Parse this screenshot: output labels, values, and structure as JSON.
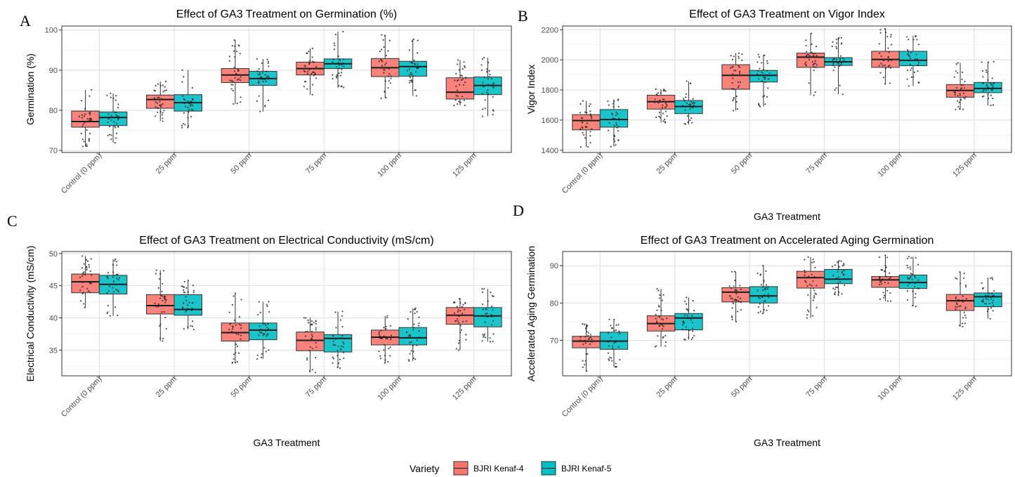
{
  "colors": {
    "BJRI Kenaf-4": "#F8766D",
    "BJRI Kenaf-5": "#00BFC4"
  },
  "legend": {
    "title": "Variety",
    "items": [
      {
        "label": "BJRI Kenaf-4",
        "color": "#F8766D"
      },
      {
        "label": "BJRI Kenaf-5",
        "color": "#00BFC4"
      }
    ]
  },
  "chart_data": [
    {
      "panel": "A",
      "type": "box",
      "title": "Effect of GA3 Treatment on Germination (%)",
      "xlabel": "",
      "ylabel": "Germination (%)",
      "ylim": [
        69.5,
        101
      ],
      "yticks": [
        70,
        80,
        90,
        100
      ],
      "categories": [
        "Control (0 ppm)",
        "25 ppm",
        "50 ppm",
        "75 ppm",
        "100 ppm",
        "125 ppm"
      ],
      "series": [
        {
          "name": "BJRI Kenaf-4",
          "boxes": [
            {
              "q1": 75.8,
              "median": 77.2,
              "q3": 79.8,
              "min": 71.0,
              "max": 85.1
            },
            {
              "q1": 80.5,
              "median": 82.7,
              "q3": 83.8,
              "min": 77.3,
              "max": 87.2
            },
            {
              "q1": 86.9,
              "median": 88.8,
              "q3": 90.4,
              "min": 81.6,
              "max": 97.5
            },
            {
              "q1": 88.8,
              "median": 90.4,
              "q3": 92.0,
              "min": 83.9,
              "max": 95.4
            },
            {
              "q1": 88.4,
              "median": 90.6,
              "q3": 92.9,
              "min": 83.0,
              "max": 98.8
            },
            {
              "q1": 82.8,
              "median": 84.5,
              "q3": 88.1,
              "min": 81.2,
              "max": 92.5
            }
          ]
        },
        {
          "name": "BJRI Kenaf-5",
          "boxes": [
            {
              "q1": 76.2,
              "median": 78.2,
              "q3": 79.6,
              "min": 71.9,
              "max": 84.2
            },
            {
              "q1": 79.8,
              "median": 81.9,
              "q3": 83.9,
              "min": 75.7,
              "max": 90.0
            },
            {
              "q1": 86.2,
              "median": 87.9,
              "q3": 89.7,
              "min": 79.7,
              "max": 92.8
            },
            {
              "q1": 90.4,
              "median": 91.6,
              "q3": 92.8,
              "min": 85.7,
              "max": 99.6
            },
            {
              "q1": 88.5,
              "median": 90.9,
              "q3": 92.2,
              "min": 83.6,
              "max": 97.7
            },
            {
              "q1": 83.9,
              "median": 86.2,
              "q3": 88.3,
              "min": 78.5,
              "max": 93.1
            }
          ]
        }
      ]
    },
    {
      "panel": "B",
      "type": "box",
      "title": "Effect of GA3 Treatment on Vigor Index",
      "xlabel": "GA3 Treatment",
      "ylabel": "Vigor Index",
      "ylim": [
        1385,
        2225
      ],
      "yticks": [
        1400,
        1600,
        1800,
        2000,
        2200
      ],
      "categories": [
        "Control (0 ppm)",
        "25 ppm",
        "50 ppm",
        "75 ppm",
        "100 ppm",
        "125 ppm"
      ],
      "series": [
        {
          "name": "BJRI Kenaf-4",
          "boxes": [
            {
              "q1": 1535,
              "median": 1597,
              "q3": 1636,
              "min": 1421,
              "max": 1727
            },
            {
              "q1": 1673,
              "median": 1722,
              "q3": 1765,
              "min": 1583,
              "max": 1805
            },
            {
              "q1": 1805,
              "median": 1897,
              "q3": 1968,
              "min": 1663,
              "max": 2045
            },
            {
              "q1": 1950,
              "median": 2018,
              "q3": 2045,
              "min": 1765,
              "max": 2175
            },
            {
              "q1": 1950,
              "median": 2003,
              "q3": 2057,
              "min": 1840,
              "max": 2206
            },
            {
              "q1": 1752,
              "median": 1797,
              "q3": 1836,
              "min": 1670,
              "max": 1980
            }
          ]
        },
        {
          "name": "BJRI Kenaf-5",
          "boxes": [
            {
              "q1": 1553,
              "median": 1604,
              "q3": 1670,
              "min": 1424,
              "max": 1738
            },
            {
              "q1": 1643,
              "median": 1690,
              "q3": 1730,
              "min": 1573,
              "max": 1858
            },
            {
              "q1": 1853,
              "median": 1897,
              "q3": 1930,
              "min": 1690,
              "max": 2036
            },
            {
              "q1": 1963,
              "median": 1987,
              "q3": 2015,
              "min": 1772,
              "max": 2147
            },
            {
              "q1": 1961,
              "median": 1997,
              "q3": 2057,
              "min": 1826,
              "max": 2160
            },
            {
              "q1": 1782,
              "median": 1810,
              "q3": 1850,
              "min": 1697,
              "max": 1988
            }
          ]
        }
      ]
    },
    {
      "panel": "C",
      "type": "box",
      "title": "Effect of GA3 Treatment on Electrical Conductivity (mS/cm)",
      "xlabel": "GA3 Treatment",
      "ylabel": "Electrical Conductivity (mS/cm)",
      "ylim": [
        31.0,
        50.3
      ],
      "yticks": [
        35,
        40,
        45,
        50
      ],
      "categories": [
        "Control (0 ppm)",
        "25 ppm",
        "50 ppm",
        "75 ppm",
        "100 ppm",
        "125 ppm"
      ],
      "series": [
        {
          "name": "BJRI Kenaf-4",
          "boxes": [
            {
              "q1": 43.9,
              "median": 45.6,
              "q3": 46.8,
              "min": 41.6,
              "max": 49.6
            },
            {
              "q1": 40.6,
              "median": 41.9,
              "q3": 43.6,
              "min": 36.4,
              "max": 47.4
            },
            {
              "q1": 36.4,
              "median": 37.7,
              "q3": 39.2,
              "min": 33.0,
              "max": 43.8
            },
            {
              "q1": 34.9,
              "median": 36.5,
              "q3": 37.8,
              "min": 31.5,
              "max": 40.0
            },
            {
              "q1": 35.8,
              "median": 37.0,
              "q3": 38.1,
              "min": 33.0,
              "max": 40.3
            },
            {
              "q1": 39.0,
              "median": 40.4,
              "q3": 41.6,
              "min": 35.0,
              "max": 43.0
            }
          ]
        },
        {
          "name": "BJRI Kenaf-5",
          "boxes": [
            {
              "q1": 43.7,
              "median": 45.2,
              "q3": 46.6,
              "min": 40.3,
              "max": 49.1
            },
            {
              "q1": 40.4,
              "median": 41.3,
              "q3": 43.6,
              "min": 38.2,
              "max": 45.8
            },
            {
              "q1": 36.6,
              "median": 38.1,
              "q3": 39.2,
              "min": 33.6,
              "max": 42.5
            },
            {
              "q1": 34.7,
              "median": 36.8,
              "q3": 37.4,
              "min": 32.2,
              "max": 41.0
            },
            {
              "q1": 35.8,
              "median": 36.9,
              "q3": 38.5,
              "min": 33.3,
              "max": 41.5
            },
            {
              "q1": 38.6,
              "median": 40.3,
              "q3": 41.6,
              "min": 36.3,
              "max": 44.5
            }
          ]
        }
      ]
    },
    {
      "panel": "D",
      "type": "box",
      "title": "Effect of GA3 Treatment on Accelerated Aging Germination",
      "xlabel": "GA3 Treatment",
      "ylabel": "Accelerated Aging Germination",
      "ylim": [
        60.5,
        93.8
      ],
      "yticks": [
        70,
        80,
        90
      ],
      "categories": [
        "Control (0 ppm)",
        "25 ppm",
        "50 ppm",
        "75 ppm",
        "100 ppm",
        "125 ppm"
      ],
      "series": [
        {
          "name": "BJRI Kenaf-4",
          "boxes": [
            {
              "q1": 68.0,
              "median": 69.8,
              "q3": 71.1,
              "min": 61.8,
              "max": 74.4
            },
            {
              "q1": 72.5,
              "median": 74.5,
              "q3": 76.6,
              "min": 68.3,
              "max": 83.8
            },
            {
              "q1": 80.3,
              "median": 82.9,
              "q3": 84.1,
              "min": 75.0,
              "max": 88.4
            },
            {
              "q1": 84.0,
              "median": 86.8,
              "q3": 88.5,
              "min": 76.0,
              "max": 92.3
            },
            {
              "q1": 84.2,
              "median": 86.2,
              "q3": 87.1,
              "min": 80.5,
              "max": 92.8
            },
            {
              "q1": 78.0,
              "median": 80.6,
              "q3": 82.3,
              "min": 73.7,
              "max": 88.3
            }
          ]
        },
        {
          "name": "BJRI Kenaf-5",
          "boxes": [
            {
              "q1": 67.6,
              "median": 69.8,
              "q3": 72.2,
              "min": 62.9,
              "max": 75.6
            },
            {
              "q1": 72.8,
              "median": 76.0,
              "q3": 77.2,
              "min": 70.2,
              "max": 81.5
            },
            {
              "q1": 80.0,
              "median": 81.9,
              "q3": 84.4,
              "min": 77.2,
              "max": 90.0
            },
            {
              "q1": 85.2,
              "median": 86.4,
              "q3": 89.0,
              "min": 82.1,
              "max": 91.3
            },
            {
              "q1": 83.9,
              "median": 85.5,
              "q3": 87.5,
              "min": 79.1,
              "max": 92.4
            },
            {
              "q1": 79.0,
              "median": 81.7,
              "q3": 82.7,
              "min": 75.8,
              "max": 86.8
            }
          ]
        }
      ]
    }
  ]
}
